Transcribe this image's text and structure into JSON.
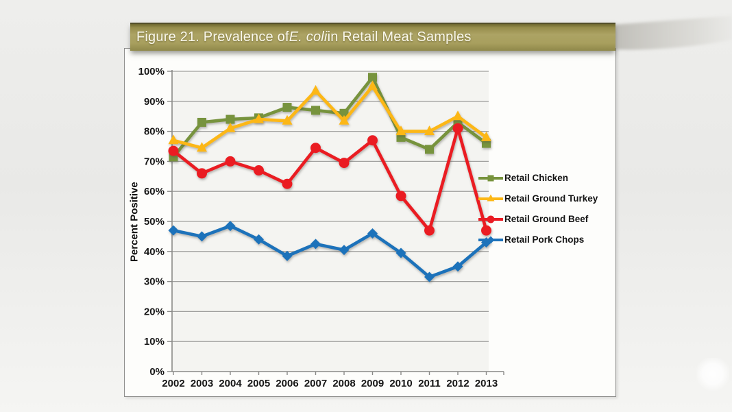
{
  "figure": {
    "title_prefix": "Figure 21. Prevalence of ",
    "title_italic": "E. coli",
    "title_suffix": " in Retail Meat Samples",
    "title_bar_color": "#a9a05c",
    "title_text_color": "#faf8ec"
  },
  "chart_data": {
    "type": "line",
    "title": "Figure 21. Prevalence of E. coli in Retail Meat Samples",
    "xlabel": "",
    "ylabel": "Percent Positive",
    "categories": [
      "2002",
      "2003",
      "2004",
      "2005",
      "2006",
      "2007",
      "2008",
      "2009",
      "2010",
      "2011",
      "2012",
      "2013"
    ],
    "yticks": [
      "0%",
      "10%",
      "20%",
      "30%",
      "40%",
      "50%",
      "60%",
      "70%",
      "80%",
      "90%",
      "100%"
    ],
    "ylim": [
      0,
      100
    ],
    "ytick_step": 10,
    "grid": true,
    "legend_position": "right",
    "axis_color": "#8a8a88",
    "gridline_color": "#a0a09e",
    "series": [
      {
        "name": "Retail Chicken",
        "color": "#77933c",
        "marker": "square",
        "values": [
          71.5,
          83,
          84,
          84.5,
          88,
          87,
          86,
          98,
          78,
          74,
          83,
          76
        ]
      },
      {
        "name": "Retail Ground Turkey",
        "color": "#fcb715",
        "marker": "triangle",
        "values": [
          77,
          74.5,
          81,
          84,
          83.5,
          93.5,
          83.5,
          95,
          80,
          80,
          85,
          78
        ]
      },
      {
        "name": "Retail Ground Beef",
        "color": "#ea1c24",
        "marker": "circle",
        "values": [
          73.5,
          66,
          70,
          67,
          62.5,
          74.5,
          69.5,
          77,
          58.5,
          47,
          81,
          47
        ]
      },
      {
        "name": "Retail Pork Chops",
        "color": "#1d72ba",
        "marker": "diamond",
        "values": [
          47,
          45,
          48.5,
          44,
          38.5,
          42.5,
          40.5,
          46,
          39.5,
          31.5,
          35,
          43
        ]
      }
    ]
  }
}
